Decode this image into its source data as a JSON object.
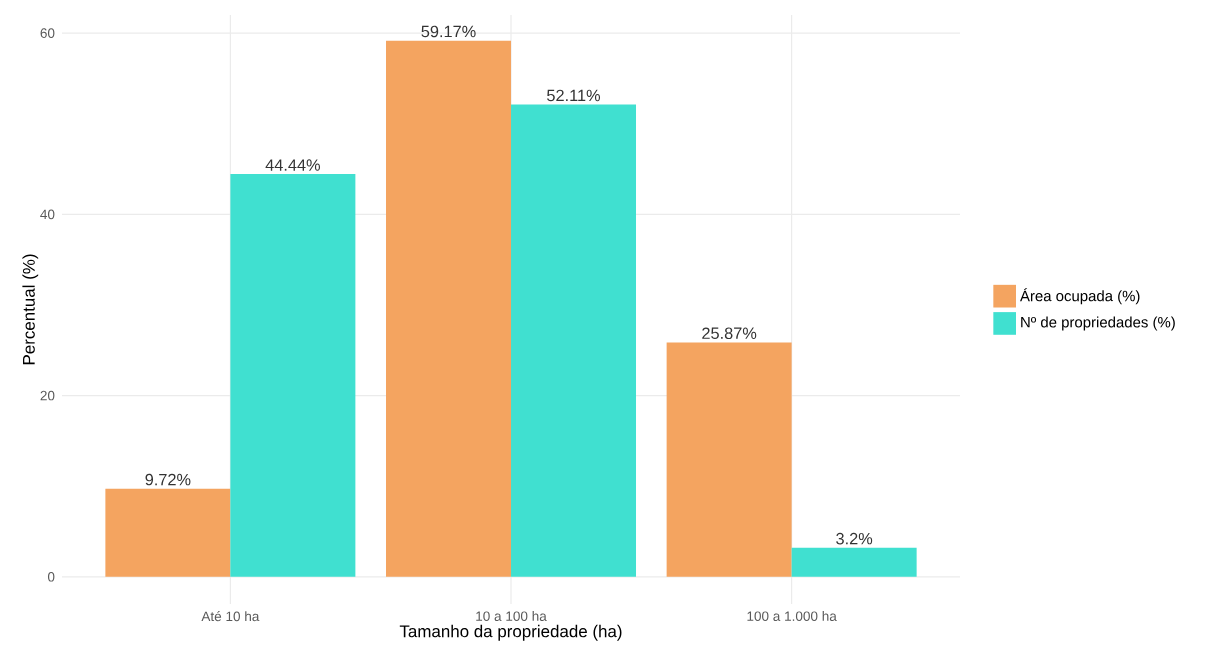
{
  "chart_data": {
    "type": "bar",
    "xlabel": "Tamanho da propriedade (ha)",
    "ylabel": "Percentual (%)",
    "categories": [
      "Até 10 ha",
      "10 a 100 ha",
      "100 a 1.000 ha"
    ],
    "series": [
      {
        "name": "Área ocupada (%)",
        "color": "#f4a460",
        "values": [
          9.72,
          59.17,
          25.87
        ],
        "value_labels": [
          "9.72%",
          "59.17%",
          "25.87%"
        ]
      },
      {
        "name": "Nº de propriedades (%)",
        "color": "#40e0d0",
        "values": [
          44.44,
          52.11,
          3.2
        ],
        "value_labels": [
          "44.44%",
          "52.11%",
          "3.2%"
        ]
      }
    ],
    "ylim": [
      -3,
      62
    ],
    "yticks": [
      0,
      20,
      40,
      60
    ],
    "grid": true,
    "legend": "right"
  }
}
